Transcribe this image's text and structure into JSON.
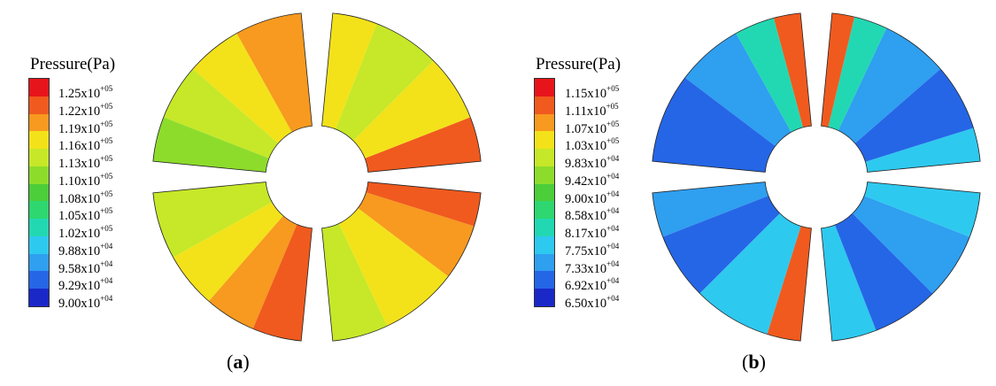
{
  "panels": [
    {
      "id": "a",
      "legend_title": "Pressure(Pa)",
      "legend_labels": [
        {
          "m": "1.25x10",
          "e": "+05"
        },
        {
          "m": "1.22x10",
          "e": "+05"
        },
        {
          "m": "1.19x10",
          "e": "+05"
        },
        {
          "m": "1.16x10",
          "e": "+05"
        },
        {
          "m": "1.13x10",
          "e": "+05"
        },
        {
          "m": "1.10x10",
          "e": "+05"
        },
        {
          "m": "1.08x10",
          "e": "+05"
        },
        {
          "m": "1.05x10",
          "e": "+05"
        },
        {
          "m": "1.02x10",
          "e": "+05"
        },
        {
          "m": "9.88x10",
          "e": "+04"
        },
        {
          "m": "9.58x10",
          "e": "+04"
        },
        {
          "m": "9.29x10",
          "e": "+04"
        },
        {
          "m": "9.00x10",
          "e": "+04"
        }
      ],
      "caption_open": "(",
      "caption_letter": "a",
      "caption_close": ")"
    },
    {
      "id": "b",
      "legend_title": "Pressure(Pa)",
      "legend_labels": [
        {
          "m": "1.15x10",
          "e": "+05"
        },
        {
          "m": "1.11x10",
          "e": "+05"
        },
        {
          "m": "1.07x10",
          "e": "+05"
        },
        {
          "m": "1.03x10",
          "e": "+05"
        },
        {
          "m": "9.83x10",
          "e": "+04"
        },
        {
          "m": "9.42x10",
          "e": "+04"
        },
        {
          "m": "9.00x10",
          "e": "+04"
        },
        {
          "m": "8.58x10",
          "e": "+04"
        },
        {
          "m": "8.17x10",
          "e": "+04"
        },
        {
          "m": "7.75x10",
          "e": "+04"
        },
        {
          "m": "7.33x10",
          "e": "+04"
        },
        {
          "m": "6.92x10",
          "e": "+04"
        },
        {
          "m": "6.50x10",
          "e": "+04"
        }
      ],
      "caption_open": "(",
      "caption_letter": "b",
      "caption_close": ")"
    }
  ],
  "colormap": [
    "#e8141b",
    "#f05a1e",
    "#f79a1f",
    "#f3e21a",
    "#c6e828",
    "#8ddc2c",
    "#4ccd3a",
    "#2ed770",
    "#22d8b2",
    "#2ec9ef",
    "#2f9ff0",
    "#2566e6",
    "#1a28c8"
  ]
}
